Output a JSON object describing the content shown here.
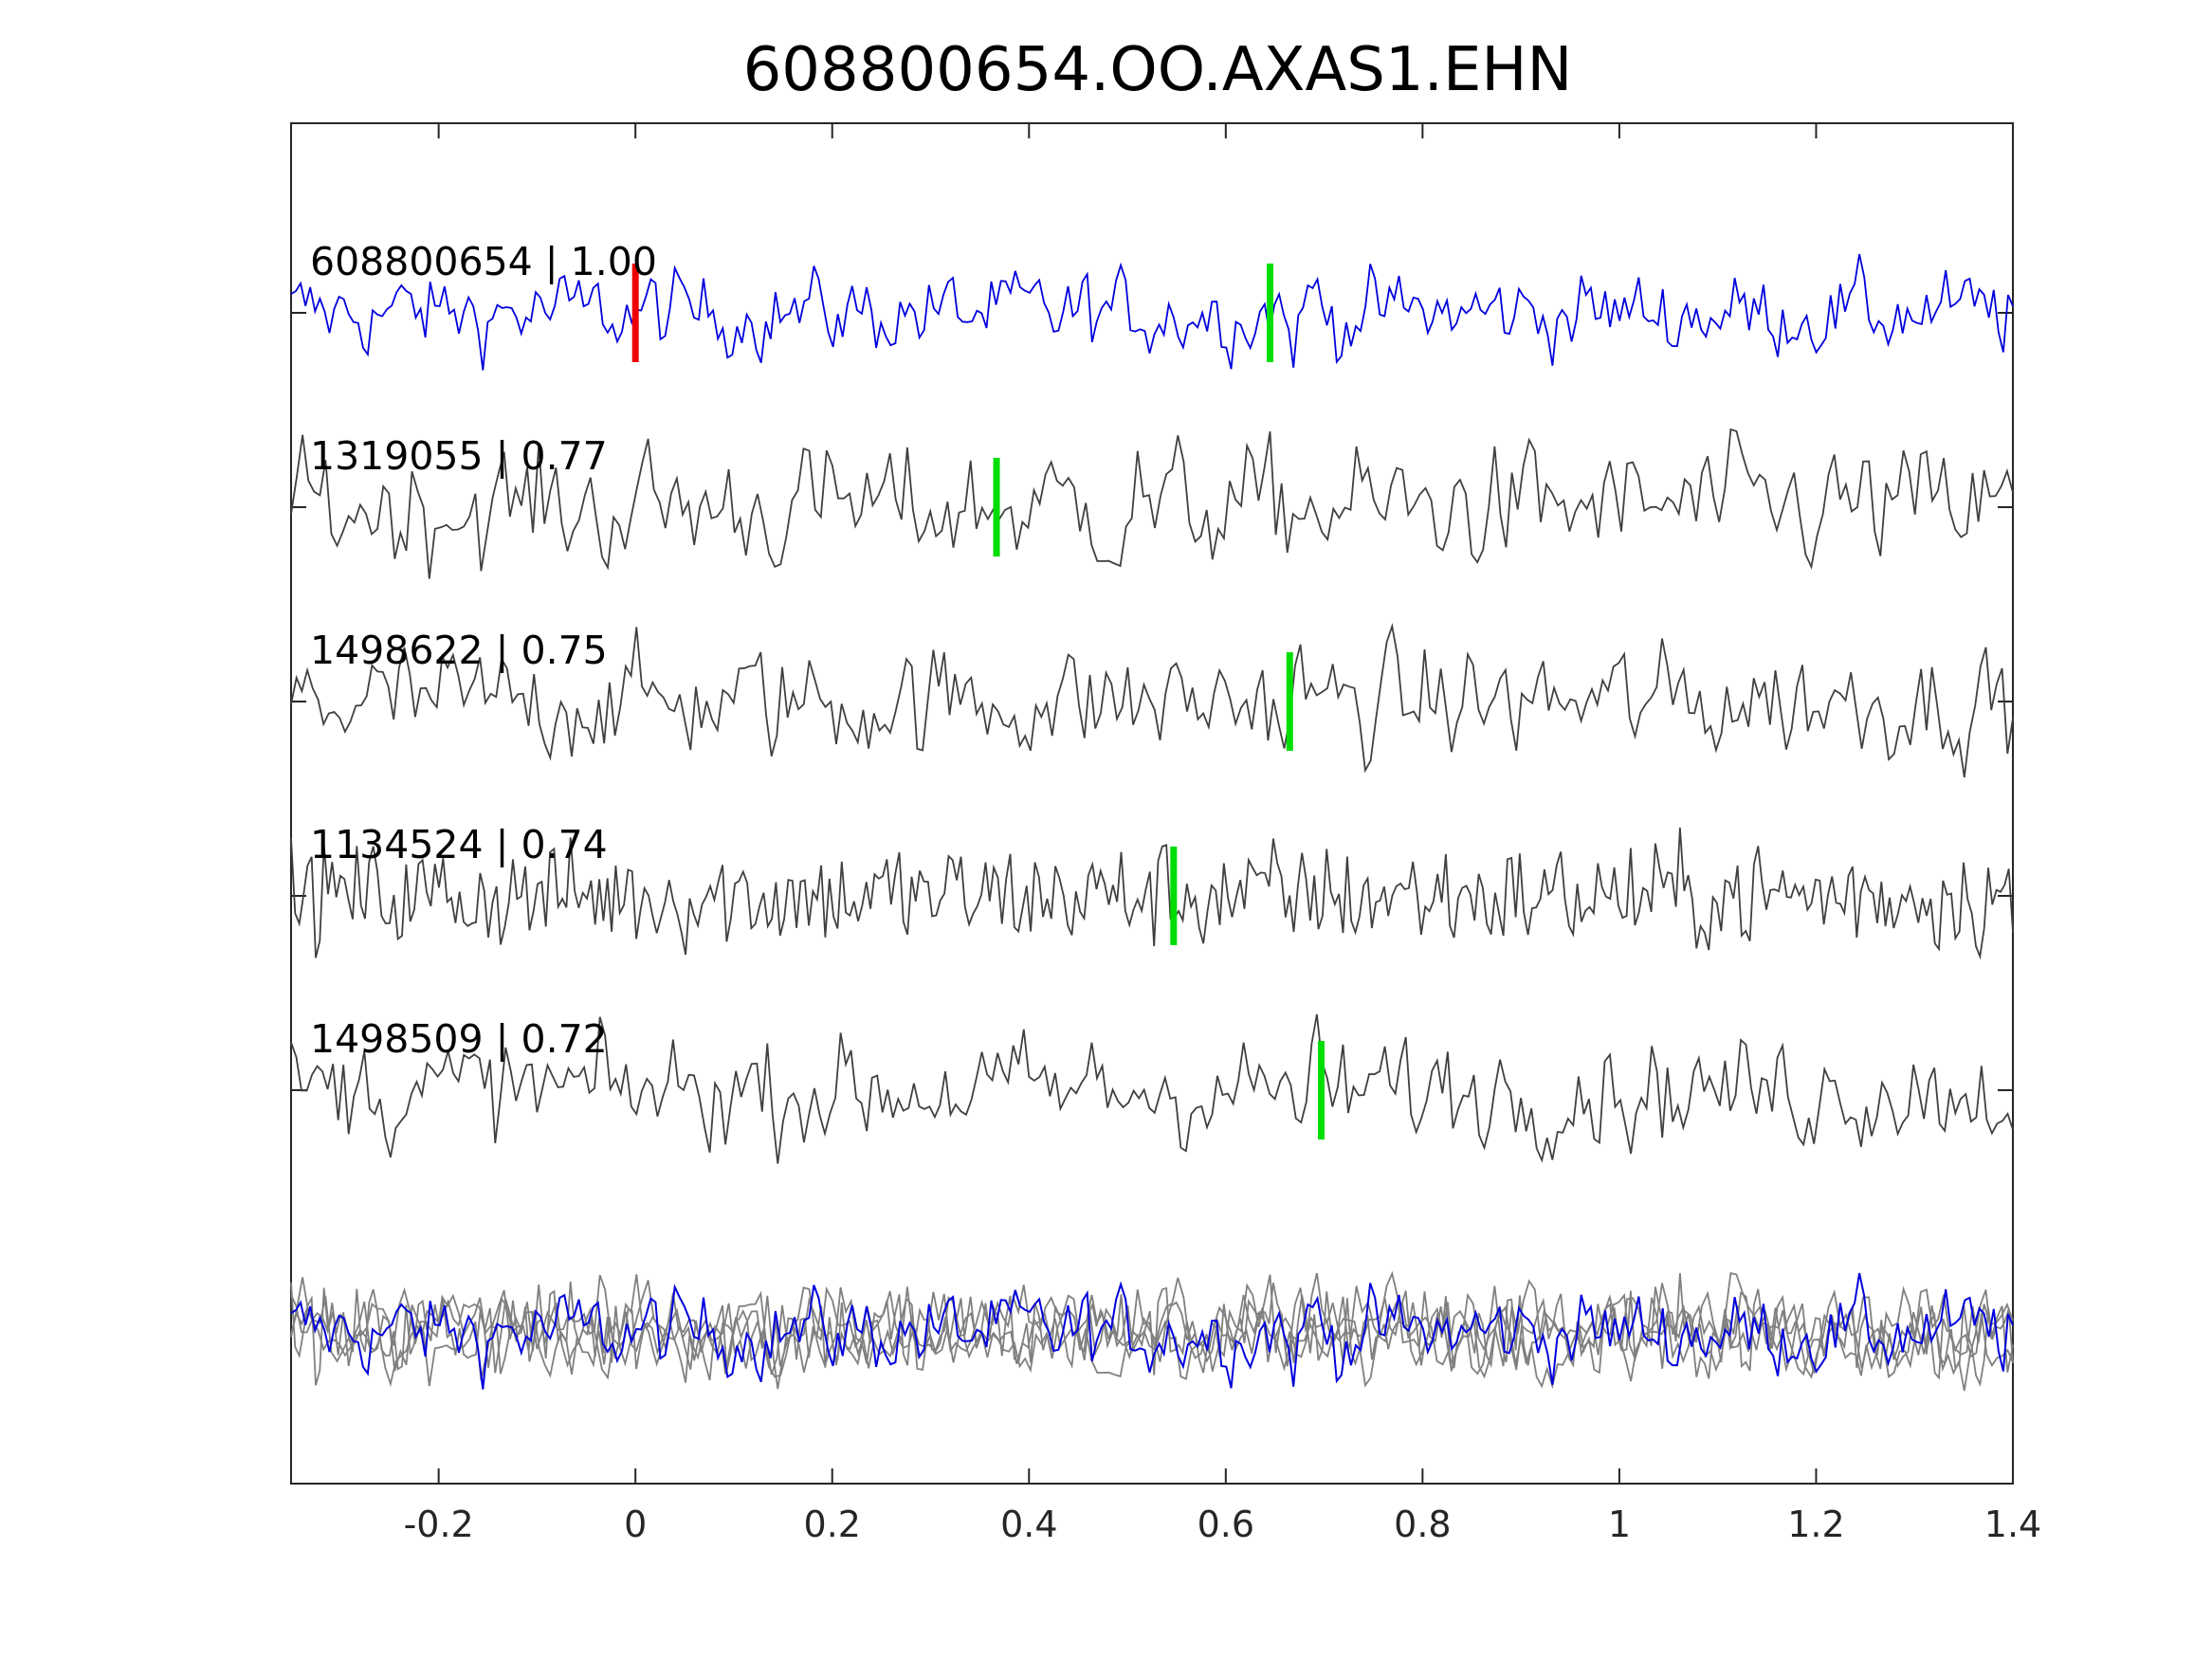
{
  "chart_data": {
    "type": "line",
    "title": "608800654.OO.AXAS1.EHN",
    "xlabel": "",
    "ylabel": "",
    "xlim": [
      -0.35,
      1.4
    ],
    "x_ticks": [
      -0.2,
      0,
      0.2,
      0.4,
      0.6,
      0.8,
      1,
      1.2,
      1.4
    ],
    "x_tick_labels": [
      "-0.2",
      "0",
      "0.2",
      "0.4",
      "0.6",
      "0.8",
      "1",
      "1.2",
      "1.4"
    ],
    "grid": false,
    "legend": "none",
    "colors": {
      "reference": "#0000dd",
      "match": "#404040",
      "stack_match": "#808080",
      "reference_pick": "#ee0000",
      "match_pick": "#00dd00",
      "axis": "#262626"
    },
    "traces": [
      {
        "id": "608800654",
        "label": "608800654 | 1.00",
        "correlation": 1.0,
        "role": "reference",
        "pick_time": 0.0,
        "pick_color": "#ee0000",
        "pick2_time": 0.645,
        "pick2_color": "#00dd00"
      },
      {
        "id": "1319055",
        "label": "1319055 | 0.77",
        "correlation": 0.77,
        "role": "match",
        "pick_time": 0.367,
        "pick_color": "#00dd00"
      },
      {
        "id": "1498622",
        "label": "1498622 | 0.75",
        "correlation": 0.75,
        "role": "match",
        "pick_time": 0.665,
        "pick_color": "#00dd00"
      },
      {
        "id": "1134524",
        "label": "1134524 | 0.74",
        "correlation": 0.74,
        "role": "match",
        "pick_time": 0.547,
        "pick_color": "#00dd00"
      },
      {
        "id": "1498509",
        "label": "1498509 | 0.72",
        "correlation": 0.72,
        "role": "match",
        "pick_time": 0.697,
        "pick_color": "#00dd00"
      }
    ],
    "stack": {
      "description_visible": false,
      "includes": [
        "608800654",
        "1319055",
        "1498622",
        "1134524",
        "1498509"
      ]
    }
  }
}
